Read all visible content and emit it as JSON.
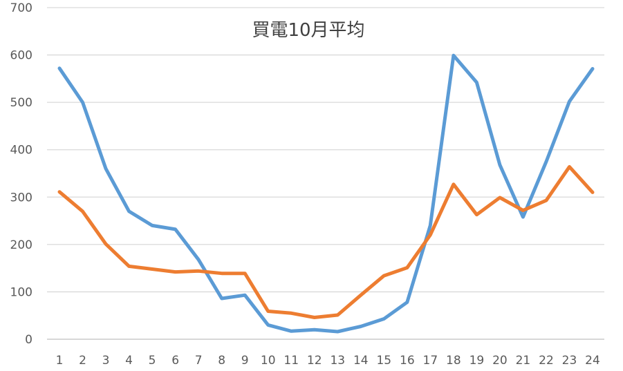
{
  "chart_data": {
    "type": "line",
    "title": "買電10月平均",
    "categories": [
      "1",
      "2",
      "3",
      "4",
      "5",
      "6",
      "7",
      "8",
      "9",
      "10",
      "11",
      "12",
      "13",
      "14",
      "15",
      "16",
      "17",
      "18",
      "19",
      "20",
      "21",
      "22",
      "23",
      "24"
    ],
    "series": [
      {
        "color": "#5B9BD5",
        "values": [
          572,
          500,
          360,
          270,
          240,
          232,
          168,
          86,
          93,
          30,
          17,
          20,
          16,
          27,
          43,
          78,
          240,
          599,
          542,
          368,
          258,
          375,
          502,
          571
        ]
      },
      {
        "color": "#ED7D31",
        "values": [
          311,
          270,
          201,
          154,
          148,
          142,
          144,
          139,
          139,
          59,
          55,
          46,
          51,
          93,
          134,
          151,
          220,
          327,
          263,
          299,
          272,
          293,
          364,
          310
        ]
      }
    ],
    "ylim": [
      0,
      700
    ],
    "yticks": [
      0,
      100,
      200,
      300,
      400,
      500,
      600,
      700
    ],
    "grid": true,
    "legend": "none"
  }
}
